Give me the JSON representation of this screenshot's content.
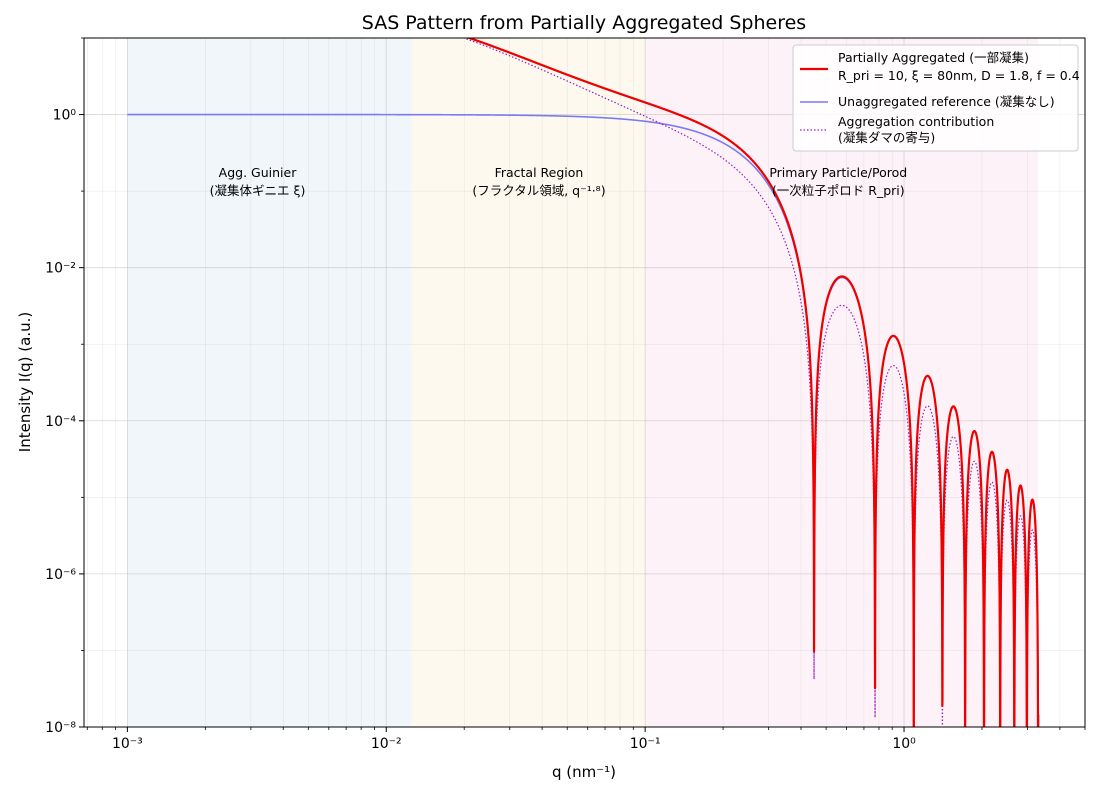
{
  "chart_data": {
    "type": "line",
    "title": "SAS Pattern from Partially Aggregated Spheres",
    "xlabel": "q (nm⁻¹)",
    "ylabel": "Intensity I(q) (a.u.)",
    "x_scale": "log",
    "y_scale": "log",
    "xlim": [
      0.00068,
      5.0
    ],
    "ylim": [
      1e-08,
      10
    ],
    "x_ticks": [
      {
        "value": 0.001,
        "label": "10⁻³"
      },
      {
        "value": 0.01,
        "label": "10⁻²"
      },
      {
        "value": 0.1,
        "label": "10⁻¹"
      },
      {
        "value": 1,
        "label": "10⁰"
      }
    ],
    "y_ticks": [
      {
        "value": 1,
        "label": "10⁰"
      },
      {
        "value": 0.01,
        "label": "10⁻²"
      },
      {
        "value": 0.0001,
        "label": "10⁻⁴"
      },
      {
        "value": 1e-06,
        "label": "10⁻⁶"
      },
      {
        "value": 1e-08,
        "label": "10⁻⁸"
      }
    ],
    "grid": true,
    "legend_position": "upper-right",
    "model_parameters": {
      "R_pri": 10,
      "xi_nm": 80,
      "D": 1.8,
      "f": 0.4,
      "q_min": 0.001,
      "q_max": 3.3
    },
    "regions": [
      {
        "name": "agg-guinier",
        "x_range": [
          0.001,
          0.0125
        ],
        "color": "#dceaf2",
        "label_line1": "Agg. Guinier",
        "label_line2": "(凝集体ギニエ ξ)"
      },
      {
        "name": "fractal",
        "x_range": [
          0.0125,
          0.1
        ],
        "color": "#fbf1d8",
        "label_line1": "Fractal Region",
        "label_line2": "(フラクタル領域, q⁻¹·⁸)"
      },
      {
        "name": "porod",
        "x_range": [
          0.1,
          3.3
        ],
        "color": "#fbe0ec",
        "label_line1": "Primary Particle/Porod",
        "label_line2": "(一次粒子ポロド R_pri)"
      }
    ],
    "series": [
      {
        "name": "Partially Aggregated (一部凝集)",
        "name_line2": "R_pri = 10, ξ = 80nm, D = 1.8, f = 0.4",
        "color": "#ee0000",
        "style": "solid",
        "sample_points": [
          [
            0.02,
            9.6
          ],
          [
            0.05,
            2.8
          ],
          [
            0.1,
            1.35
          ],
          [
            0.2,
            0.55
          ],
          [
            0.3,
            0.13
          ],
          [
            0.45,
            5e-08
          ],
          [
            0.58,
            0.0075
          ],
          [
            0.77,
            1.5e-06
          ],
          [
            0.92,
            0.0012
          ],
          [
            1.26,
            0.00034
          ],
          [
            1.57,
            0.00013
          ],
          [
            1.9,
            5.5e-05
          ]
        ]
      },
      {
        "name": "Unaggregated reference (凝集なし)",
        "color": "#7b7bf0",
        "style": "solid",
        "sample_points": [
          [
            0.001,
            1.0
          ],
          [
            0.01,
            1.0
          ],
          [
            0.05,
            0.96
          ],
          [
            0.1,
            0.85
          ],
          [
            0.2,
            0.42
          ],
          [
            0.3,
            0.11
          ]
        ]
      },
      {
        "name": "Aggregation contribution",
        "name_line2": "(凝集ダマの寄与)",
        "color": "#9a1dbf",
        "style": "dotted",
        "sample_points": [
          [
            0.02,
            9.0
          ],
          [
            0.05,
            1.6
          ],
          [
            0.1,
            0.53
          ],
          [
            0.2,
            0.13
          ],
          [
            0.3,
            0.02
          ],
          [
            0.58,
            0.003
          ],
          [
            0.92,
            0.0005
          ],
          [
            1.26,
            0.00014
          ]
        ]
      }
    ]
  }
}
